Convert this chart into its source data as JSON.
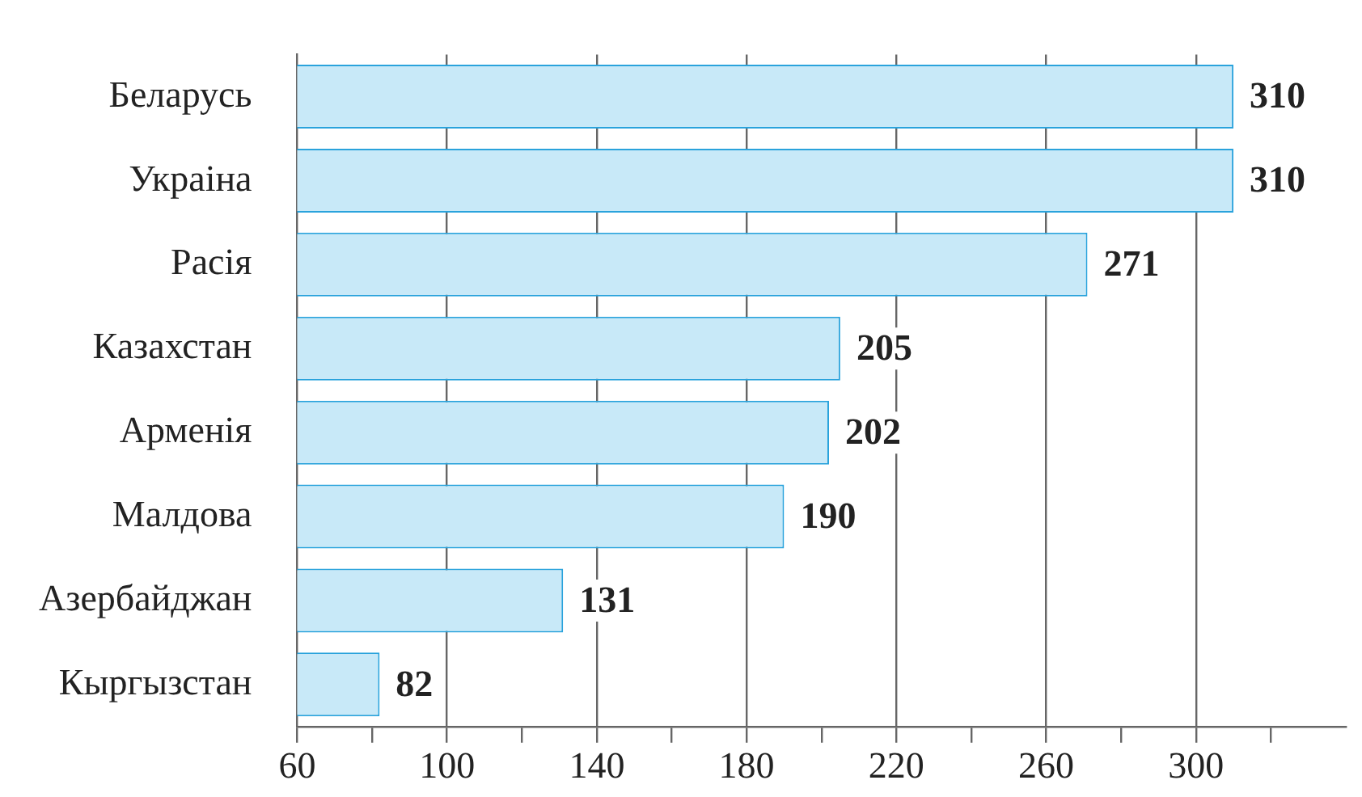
{
  "chart_data": {
    "type": "bar",
    "orientation": "horizontal",
    "categories": [
      "Беларусь",
      "Украіна",
      "Расія",
      "Казахстан",
      "Арменія",
      "Малдова",
      "Азербайджан",
      "Кыргызстан"
    ],
    "values": [
      310,
      310,
      271,
      205,
      202,
      190,
      131,
      82
    ],
    "color": "#c8e9f8",
    "xlim": [
      60,
      340
    ],
    "xticks": [
      60,
      {
        "value": 80,
        "label": null
      },
      100,
      {
        "value": 120,
        "label": null
      },
      140,
      {
        "value": 160,
        "label": null
      },
      180,
      {
        "value": 200,
        "label": null
      },
      220,
      {
        "value": 240,
        "label": null
      },
      260,
      {
        "value": 280,
        "label": null
      },
      300,
      {
        "value": 320,
        "label": null
      }
    ],
    "grid": "x",
    "data_labels": true
  }
}
